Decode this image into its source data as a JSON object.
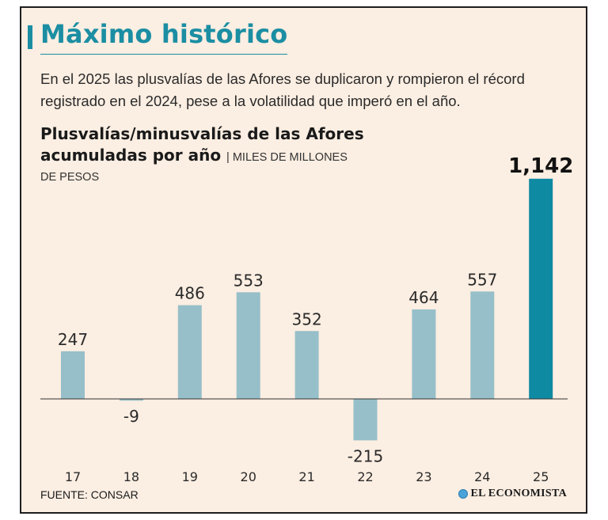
{
  "header": {
    "title": "Máximo histórico",
    "subtitle": "En el 2025 las plusvalías de las Afores se duplicaron y rompieron el récord registrado en el 2024, pese a la volatilidad que imperó en el año."
  },
  "chart_header": {
    "title": "Plusvalías/minusvalías de las Afores acumuladas por año",
    "separator": "|",
    "units_line1": "MILES DE MILLONES",
    "units_line2": "DE PESOS"
  },
  "footer": {
    "source": "FUENTE: CONSAR",
    "publisher": "EL ECONOMISTA"
  },
  "colors": {
    "accent": "#1b8ea3",
    "bar_default": "#96bfc9",
    "bar_highlight": "#0f8aa3",
    "background": "#fbeee2",
    "axis": "#333333"
  },
  "chart_data": {
    "type": "bar",
    "title": "Plusvalías/minusvalías de las Afores acumuladas por año",
    "ylabel": "Miles de millones de pesos",
    "xlabel": "",
    "categories": [
      "17",
      "18",
      "19",
      "20",
      "21",
      "22",
      "23",
      "24",
      "25"
    ],
    "values": [
      247,
      -9,
      486,
      553,
      352,
      -215,
      464,
      557,
      1142
    ],
    "labels": [
      "247",
      "-9",
      "486",
      "553",
      "352",
      "-215",
      "464",
      "557",
      "1,142"
    ],
    "highlight_index": 8,
    "ylim": [
      -215,
      1142
    ],
    "grid": false
  }
}
